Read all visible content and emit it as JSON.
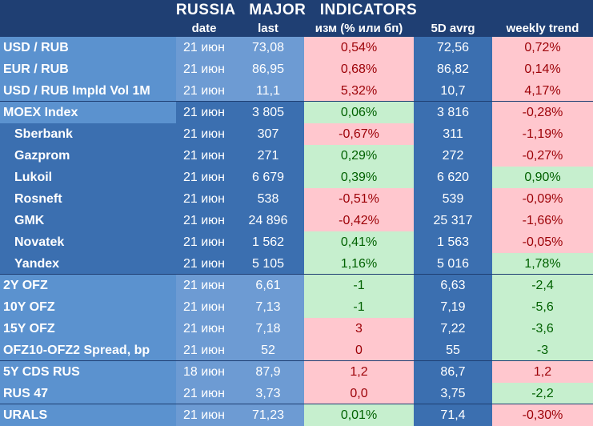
{
  "title": "RUSSIA   MAJOR   INDICATORS",
  "headers": {
    "date": "date",
    "last": "last",
    "change": "изм (% или бп)",
    "avg5d": "5D avrg",
    "trend": "weekly trend"
  },
  "rows": [
    {
      "name": "USD / RUB",
      "date": "21 июн",
      "last": "73,08",
      "change": "0,54%",
      "change_sign": "neg",
      "avg": "72,56",
      "trend": "0,72%",
      "trend_sign": "neg"
    },
    {
      "name": "EUR / RUB",
      "date": "21 июн",
      "last": "86,95",
      "change": "0,68%",
      "change_sign": "neg",
      "avg": "86,82",
      "trend": "0,14%",
      "trend_sign": "neg"
    },
    {
      "name": "USD / RUB Impld Vol 1M",
      "date": "21 июн",
      "last": "11,1",
      "change": "5,32%",
      "change_sign": "neg",
      "avg": "10,7",
      "trend": "4,17%",
      "trend_sign": "neg"
    },
    {
      "name": "MOEX Index",
      "date": "21 июн",
      "last": "3 805",
      "change": "0,06%",
      "change_sign": "pos",
      "avg": "3 816",
      "trend": "-0,28%",
      "trend_sign": "neg"
    },
    {
      "name": "Sberbank",
      "date": "21 июн",
      "last": "307",
      "change": "-0,67%",
      "change_sign": "neg",
      "avg": "311",
      "trend": "-1,19%",
      "trend_sign": "neg"
    },
    {
      "name": "Gazprom",
      "date": "21 июн",
      "last": "271",
      "change": "0,29%",
      "change_sign": "pos",
      "avg": "272",
      "trend": "-0,27%",
      "trend_sign": "neg"
    },
    {
      "name": "Lukoil",
      "date": "21 июн",
      "last": "6 679",
      "change": "0,39%",
      "change_sign": "pos",
      "avg": "6 620",
      "trend": "0,90%",
      "trend_sign": "pos"
    },
    {
      "name": "Rosneft",
      "date": "21 июн",
      "last": "538",
      "change": "-0,51%",
      "change_sign": "neg",
      "avg": "539",
      "trend": "-0,09%",
      "trend_sign": "neg"
    },
    {
      "name": "GMK",
      "date": "21 июн",
      "last": "24 896",
      "change": "-0,42%",
      "change_sign": "neg",
      "avg": "25 317",
      "trend": "-1,66%",
      "trend_sign": "neg"
    },
    {
      "name": "Novatek",
      "date": "21 июн",
      "last": "1 562",
      "change": "0,41%",
      "change_sign": "pos",
      "avg": "1 563",
      "trend": "-0,05%",
      "trend_sign": "neg"
    },
    {
      "name": "Yandex",
      "date": "21 июн",
      "last": "5 105",
      "change": "1,16%",
      "change_sign": "pos",
      "avg": "5 016",
      "trend": "1,78%",
      "trend_sign": "pos"
    },
    {
      "name": "2Y OFZ",
      "date": "21 июн",
      "last": "6,61",
      "change": "-1",
      "change_sign": "pos",
      "avg": "6,63",
      "trend": "-2,4",
      "trend_sign": "pos"
    },
    {
      "name": "10Y OFZ",
      "date": "21 июн",
      "last": "7,13",
      "change": "-1",
      "change_sign": "pos",
      "avg": "7,19",
      "trend": "-5,6",
      "trend_sign": "pos"
    },
    {
      "name": "15Y OFZ",
      "date": "21 июн",
      "last": "7,18",
      "change": "3",
      "change_sign": "neg",
      "avg": "7,22",
      "trend": "-3,6",
      "trend_sign": "pos"
    },
    {
      "name": "OFZ10-OFZ2 Spread, bp",
      "date": "21 июн",
      "last": "52",
      "change": "0",
      "change_sign": "neg",
      "avg": "55",
      "trend": "-3",
      "trend_sign": "pos"
    },
    {
      "name": "5Y CDS RUS",
      "date": "18 июн",
      "last": "87,9",
      "change": "1,2",
      "change_sign": "neg",
      "avg": "86,7",
      "trend": "1,2",
      "trend_sign": "neg"
    },
    {
      "name": "RUS 47",
      "date": "21 июн",
      "last": "3,73",
      "change": "0,0",
      "change_sign": "neg",
      "avg": "3,75",
      "trend": "-2,2",
      "trend_sign": "pos"
    },
    {
      "name": "URALS",
      "date": "21 июн",
      "last": "71,23",
      "change": "0,01%",
      "change_sign": "pos",
      "avg": "71,4",
      "trend": "-0,30%",
      "trend_sign": "neg"
    }
  ]
}
